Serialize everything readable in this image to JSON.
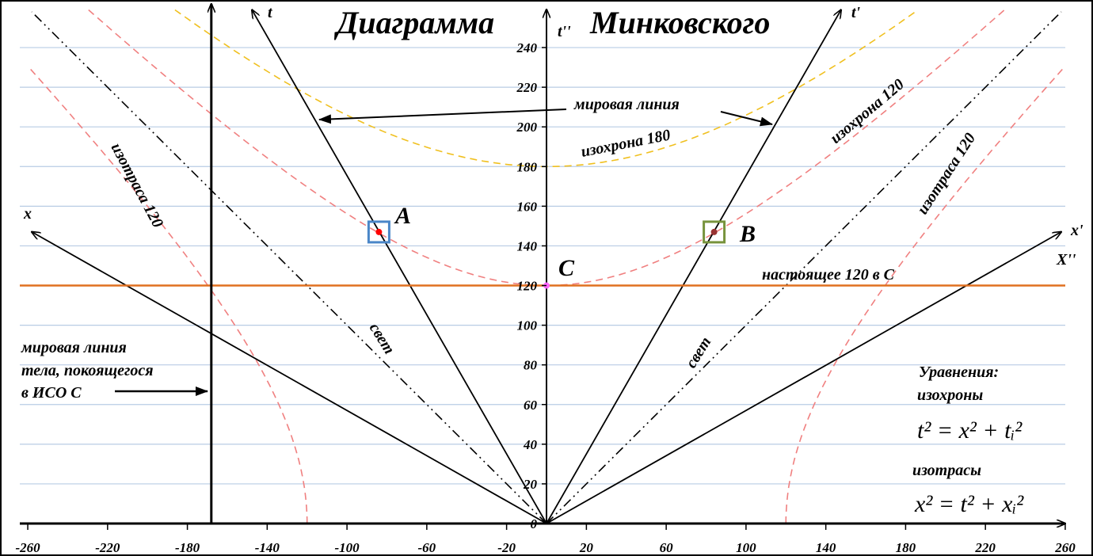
{
  "title_left": "Диаграмма",
  "title_right": "Минковского",
  "axis_labels": {
    "t": "t",
    "t_prime": "t'",
    "t_double": "t''",
    "x": "x",
    "x_prime": "x'",
    "x_double": "X''"
  },
  "labels": {
    "world_line": "мировая линия",
    "isochrone_180": "изохрона 180",
    "isochrone_120": "изохрона 120",
    "isotrass_left": "изотраса 120",
    "isotrass_right": "изотраса 120",
    "light_left": "свет",
    "light_right": "свет",
    "present": "настоящее 120 в С",
    "rest_line_1": "мировая линия",
    "rest_line_2": "тела, покоящегося",
    "rest_line_3": "в ИСО С",
    "equations": "Уравнения:",
    "isochrones": "изохроны",
    "isochrone_eq": "t² = x² + tᵢ²",
    "isotrasses": "изотрасы",
    "isotrass_eq": "x² = t² + xᵢ²"
  },
  "colors": {
    "grid": "#b8cce4",
    "isochrone_120": "#f08080",
    "isochrone_180": "#f0c020",
    "present": "#e07020",
    "point_A": "#ff0000",
    "point_B": "#993333",
    "point_C": "#ff66ff",
    "box_A": "#4a86c8",
    "box_B": "#77933c"
  },
  "chart_data": {
    "type": "line",
    "xlim": [
      -260,
      260
    ],
    "ylim": [
      0,
      260
    ],
    "x_ticks": [
      -260,
      -220,
      -180,
      -140,
      -100,
      -60,
      -20,
      20,
      60,
      100,
      140,
      180,
      220,
      260
    ],
    "y_ticks": [
      0,
      20,
      40,
      60,
      80,
      100,
      120,
      140,
      160,
      180,
      200,
      220,
      240
    ],
    "grid": true,
    "frame_velocity": 0.57,
    "isochrones": [
      120,
      180
    ],
    "isotrasses": [
      120
    ],
    "present_t": 120,
    "rest_world_line_x": -168,
    "points": [
      {
        "name": "A",
        "x": -84,
        "t": 147
      },
      {
        "name": "B",
        "x": 84,
        "t": 147
      },
      {
        "name": "C",
        "x": 0,
        "t": 120
      }
    ]
  }
}
